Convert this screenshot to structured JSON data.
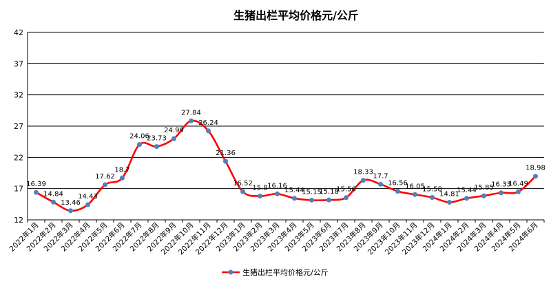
{
  "chart_data": {
    "type": "line",
    "title": "生猪出栏平均价格元/公斤",
    "xlabel": "",
    "ylabel": "",
    "ylim": [
      12,
      42
    ],
    "yticks": [
      12,
      17,
      22,
      27,
      32,
      37,
      42
    ],
    "grid": true,
    "legend_position": "bottom",
    "categories": [
      "2022年1月",
      "2022年2月",
      "2022年3月",
      "2022年4月",
      "2022年5月",
      "2022年6月",
      "2022年7月",
      "2022年8月",
      "2022年9月",
      "2022年10月",
      "2022年11月",
      "2022年12月",
      "2023年1月",
      "2023年2月",
      "2023年3月",
      "2023年4月",
      "2023年5月",
      "2023年6月",
      "2023年7月",
      "2023年8月",
      "2023年9月",
      "2023年10月",
      "2023年11月",
      "2023年12月",
      "2024年1月",
      "2024年2月",
      "2024年3月",
      "2024年4月",
      "2024年5月",
      "2024年6月"
    ],
    "series": [
      {
        "name": "生猪出栏平均价格元/公斤",
        "color": "#ff0000",
        "marker_color": "#4f81bd",
        "values": [
          16.39,
          14.84,
          13.46,
          14.43,
          17.62,
          18.7,
          24.06,
          23.73,
          24.99,
          27.84,
          26.24,
          21.36,
          16.52,
          15.8,
          16.16,
          15.44,
          15.15,
          15.18,
          15.56,
          18.33,
          17.7,
          16.56,
          16.05,
          15.58,
          14.81,
          15.44,
          15.85,
          16.33,
          16.49,
          18.98
        ]
      }
    ]
  }
}
